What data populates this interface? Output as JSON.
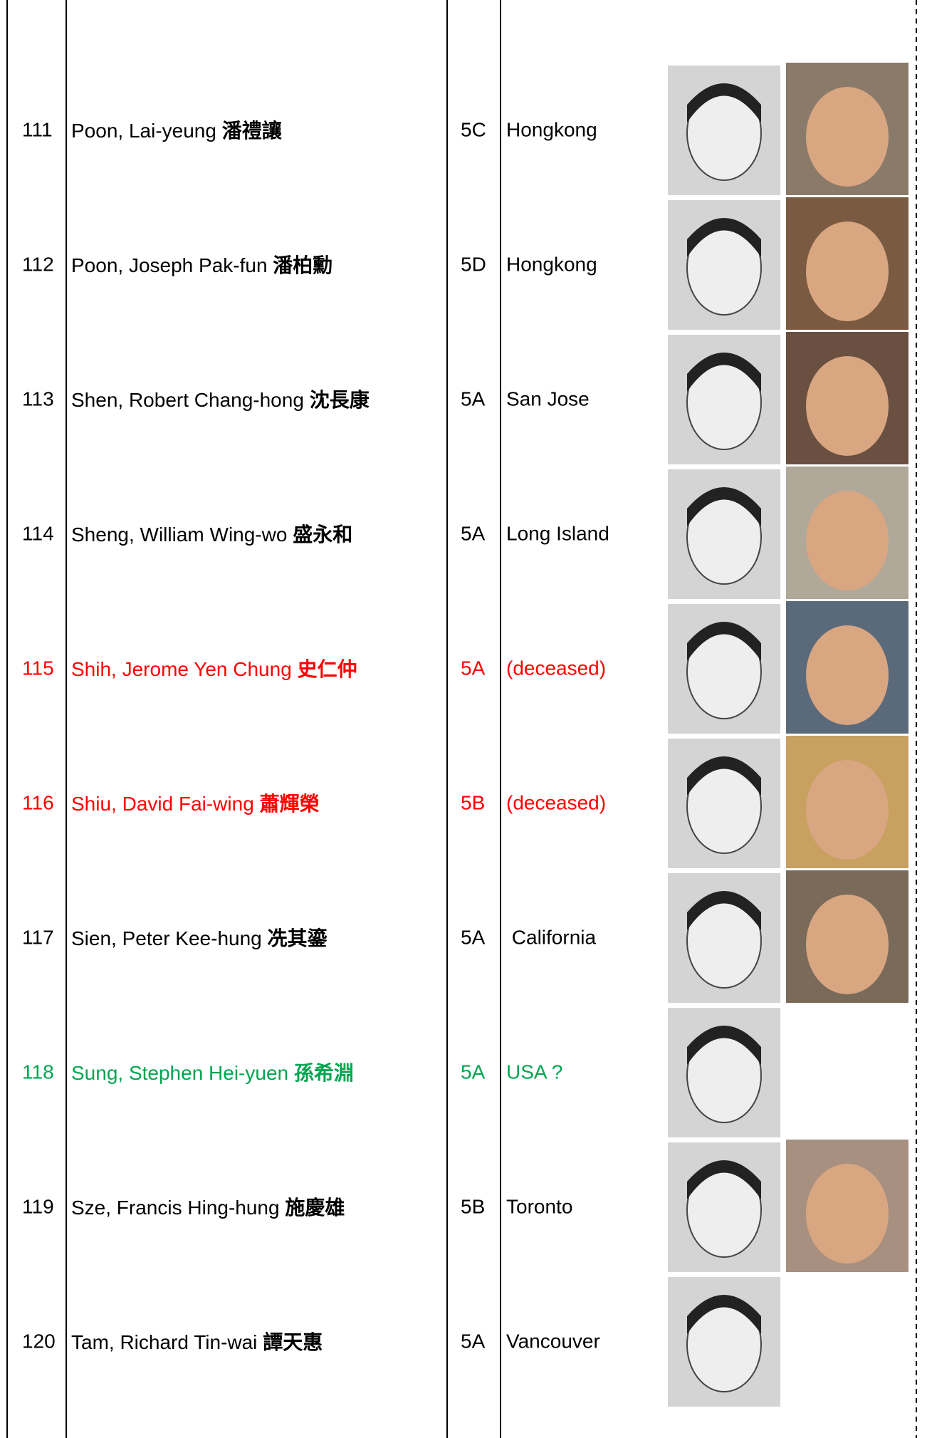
{
  "rows": [
    {
      "number": "111",
      "name": "Poon, Lai-yeung",
      "chinese": "潘禮讓",
      "class": "5C",
      "location": "Hongkong",
      "color": "#000000"
    },
    {
      "number": "112",
      "name": "Poon, Joseph Pak-fun",
      "chinese": "潘柏勳",
      "class": "5D",
      "location": "Hongkong",
      "color": "#000000"
    },
    {
      "number": "113",
      "name": "Shen, Robert Chang-hong",
      "chinese": "沈長康",
      "class": "5A",
      "location": "San Jose",
      "color": "#000000"
    },
    {
      "number": "114",
      "name": "Sheng, William Wing-wo",
      "chinese": "盛永和",
      "class": "5A",
      "location": "Long Island",
      "color": "#000000"
    },
    {
      "number": "115",
      "name": "Shih, Jerome Yen Chung",
      "chinese": "史仁仲",
      "class": "5A",
      "location": "(deceased)",
      "color": "#ff0000"
    },
    {
      "number": "116",
      "name": "Shiu, David Fai-wing",
      "chinese": "蕭輝榮",
      "class": "5B",
      "location": "(deceased)",
      "color": "#ff0000"
    },
    {
      "number": "117",
      "name": "Sien, Peter Kee-hung",
      "chinese": "冼其鎏",
      "class": "5A",
      "location": " California",
      "color": "#000000"
    },
    {
      "number": "118",
      "name": "Sung, Stephen Hei-yuen",
      "chinese": "孫希淵",
      "class": "5A",
      "location": "USA ?",
      "color": "#00a550"
    },
    {
      "number": "119",
      "name": "Sze, Francis Hing-hung",
      "chinese": "施慶雄",
      "class": "5B",
      "location": "Toronto",
      "color": "#000000"
    },
    {
      "number": "120",
      "name": "Tam, Richard Tin-wai",
      "chinese": "譚天惠",
      "class": "5A",
      "location": "Vancouver",
      "color": "#000000"
    }
  ]
}
